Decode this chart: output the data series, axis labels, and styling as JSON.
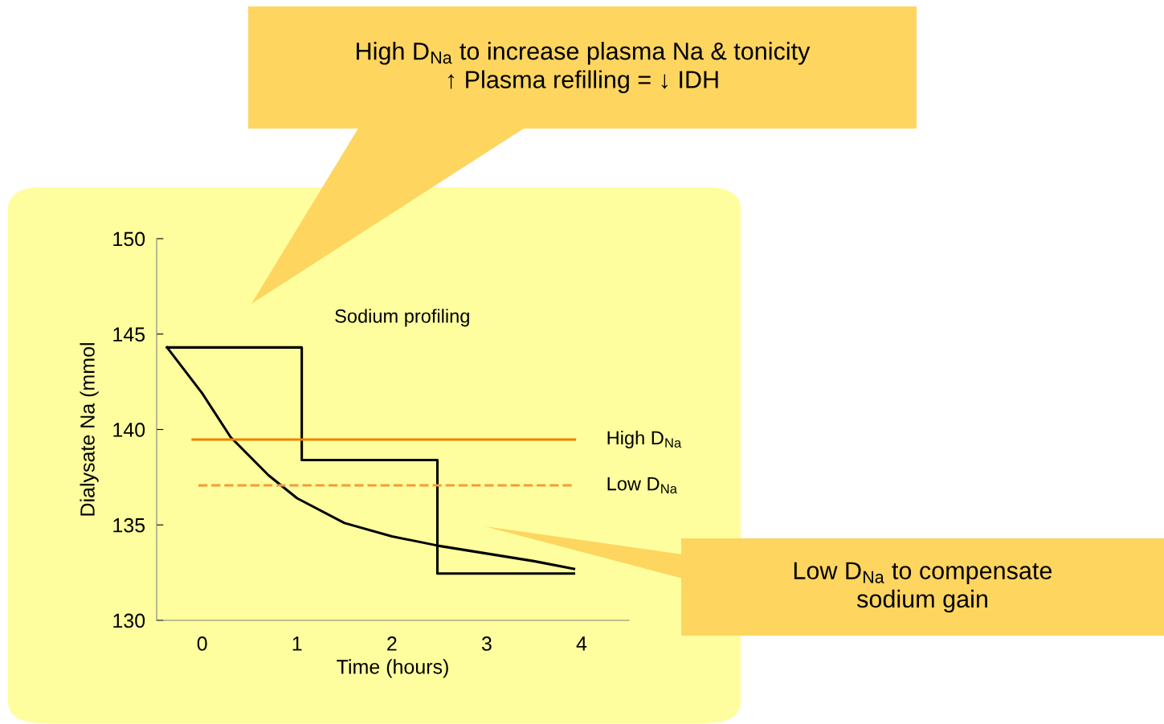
{
  "chart_data": {
    "type": "line",
    "xlabel": "Time (hours)",
    "ylabel": "Dialysate Na (mmol",
    "xlim": [
      -0.48,
      4.5
    ],
    "xticks": [
      0,
      1,
      2,
      3,
      4
    ],
    "ylim": [
      130,
      150
    ],
    "yticks": [
      130,
      135,
      140,
      145,
      150
    ],
    "grid": false,
    "legend": false,
    "annotations": [
      "Sodium profiling",
      "High D$_{Na}$ to increase plasma Na & tonicity\n↑ Plasma refilling = ↓ IDH",
      "Low D$_{Na}$ to compensate\nsodium gain"
    ],
    "series": [
      {
        "type": "step",
        "color": "#000000",
        "x": [
          -0.37,
          1.05,
          2.48,
          3.92
        ],
        "values": [
          144.3,
          138.4,
          132.45,
          132.45
        ]
      },
      {
        "color": "#000000",
        "x": [
          -0.37,
          0,
          0.3,
          0.7,
          1,
          1.5,
          2,
          2.5,
          3,
          3.5,
          3.92
        ],
        "values": [
          144.3,
          141.9,
          139.6,
          137.6,
          136.4,
          135.1,
          134.4,
          133.9,
          133.5,
          133.1,
          132.7
        ]
      },
      {
        "name": "High D$_{Na}$",
        "color": "#f08000",
        "line_style": "solid",
        "x": [
          -0.1,
          3.93
        ],
        "values": [
          139.47,
          139.47
        ]
      },
      {
        "name": "Low D$_{Na}$",
        "color": "#f59a3c",
        "line_style": "dashed",
        "x": [
          -0.04,
          3.93
        ],
        "values": [
          137.07,
          137.07
        ]
      }
    ]
  }
}
